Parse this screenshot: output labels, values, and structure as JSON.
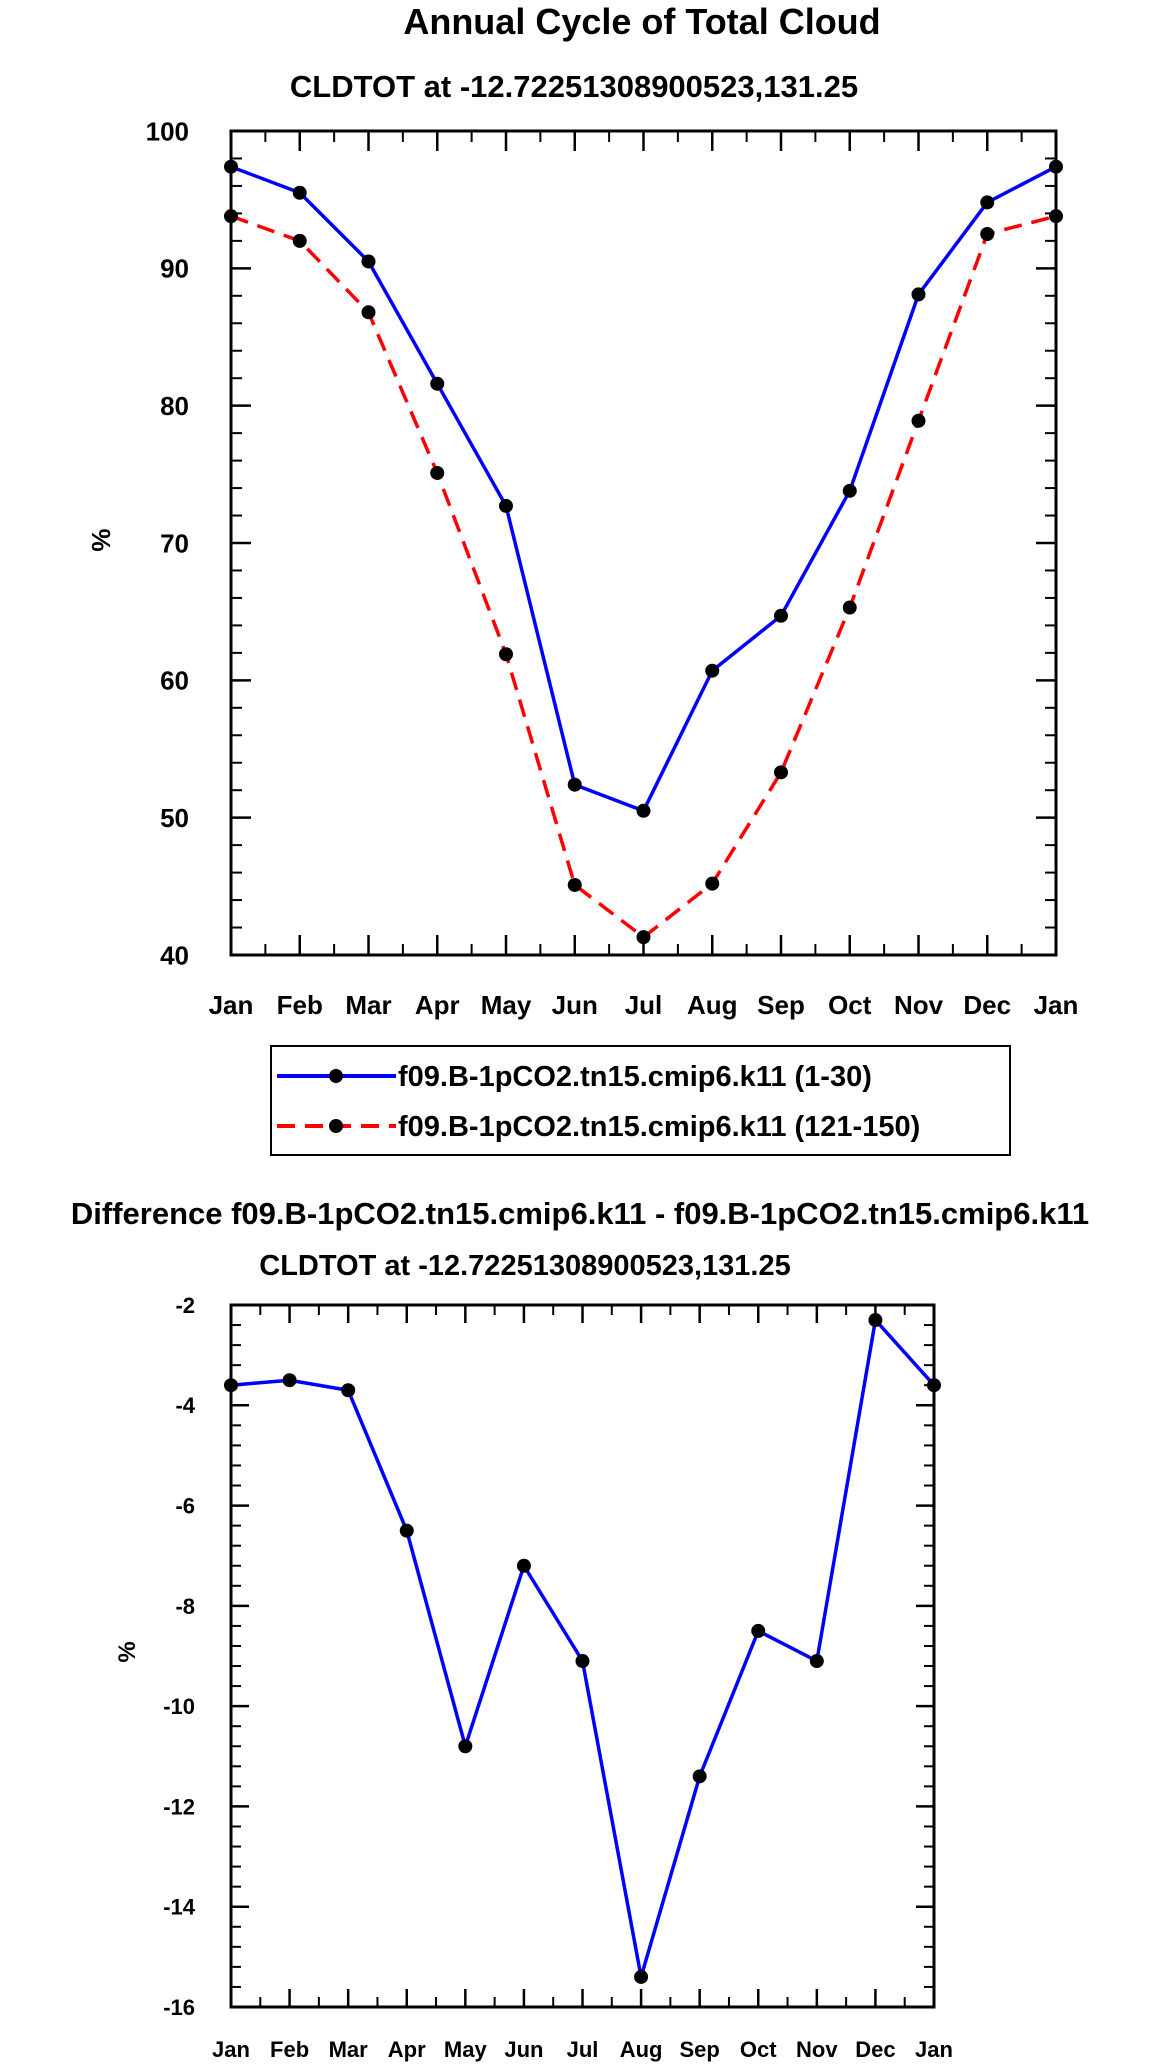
{
  "chart_data": [
    {
      "type": "line",
      "title": "Annual Cycle of Total Cloud",
      "subtitle": "CLDTOT at -12.72251308900523,131.25",
      "xlabel": "",
      "ylabel": "%",
      "categories": [
        "Jan",
        "Feb",
        "Mar",
        "Apr",
        "May",
        "Jun",
        "Jul",
        "Aug",
        "Sep",
        "Oct",
        "Nov",
        "Dec",
        "Jan"
      ],
      "ylim": [
        40,
        100
      ],
      "yticks": [
        40,
        50,
        60,
        70,
        80,
        90,
        100
      ],
      "series": [
        {
          "name": "f09.B-1pCO2.tn15.cmip6.k11 (1-30)",
          "color": "#0000ff",
          "dash": "solid",
          "values": [
            97.4,
            95.5,
            90.5,
            81.6,
            72.7,
            52.4,
            50.5,
            60.7,
            64.7,
            73.8,
            88.1,
            94.8,
            97.4
          ]
        },
        {
          "name": "f09.B-1pCO2.tn15.cmip6.k11 (121-150)",
          "color": "#ff0000",
          "dash": "dashed",
          "values": [
            93.8,
            92.0,
            86.8,
            75.1,
            61.9,
            45.1,
            41.3,
            45.2,
            53.3,
            65.3,
            78.9,
            92.5,
            93.8
          ]
        }
      ],
      "legend": "bottom"
    },
    {
      "type": "line",
      "title": "Difference f09.B-1pCO2.tn15.cmip6.k11 - f09.B-1pCO2.tn15.cmip6.k11",
      "subtitle": "CLDTOT at -12.72251308900523,131.25",
      "xlabel": "",
      "ylabel": "%",
      "categories": [
        "Jan",
        "Feb",
        "Mar",
        "Apr",
        "May",
        "Jun",
        "Jul",
        "Aug",
        "Sep",
        "Oct",
        "Nov",
        "Dec",
        "Jan"
      ],
      "ylim": [
        -16,
        -2
      ],
      "yticks": [
        -16,
        -14,
        -12,
        -10,
        -8,
        -6,
        -4,
        -2
      ],
      "series": [
        {
          "name": "difference",
          "color": "#0000ff",
          "dash": "solid",
          "values": [
            -3.6,
            -3.5,
            -3.7,
            -6.5,
            -10.8,
            -7.2,
            -9.1,
            -15.4,
            -11.4,
            -8.5,
            -9.1,
            -2.3,
            -3.6
          ]
        }
      ]
    }
  ]
}
